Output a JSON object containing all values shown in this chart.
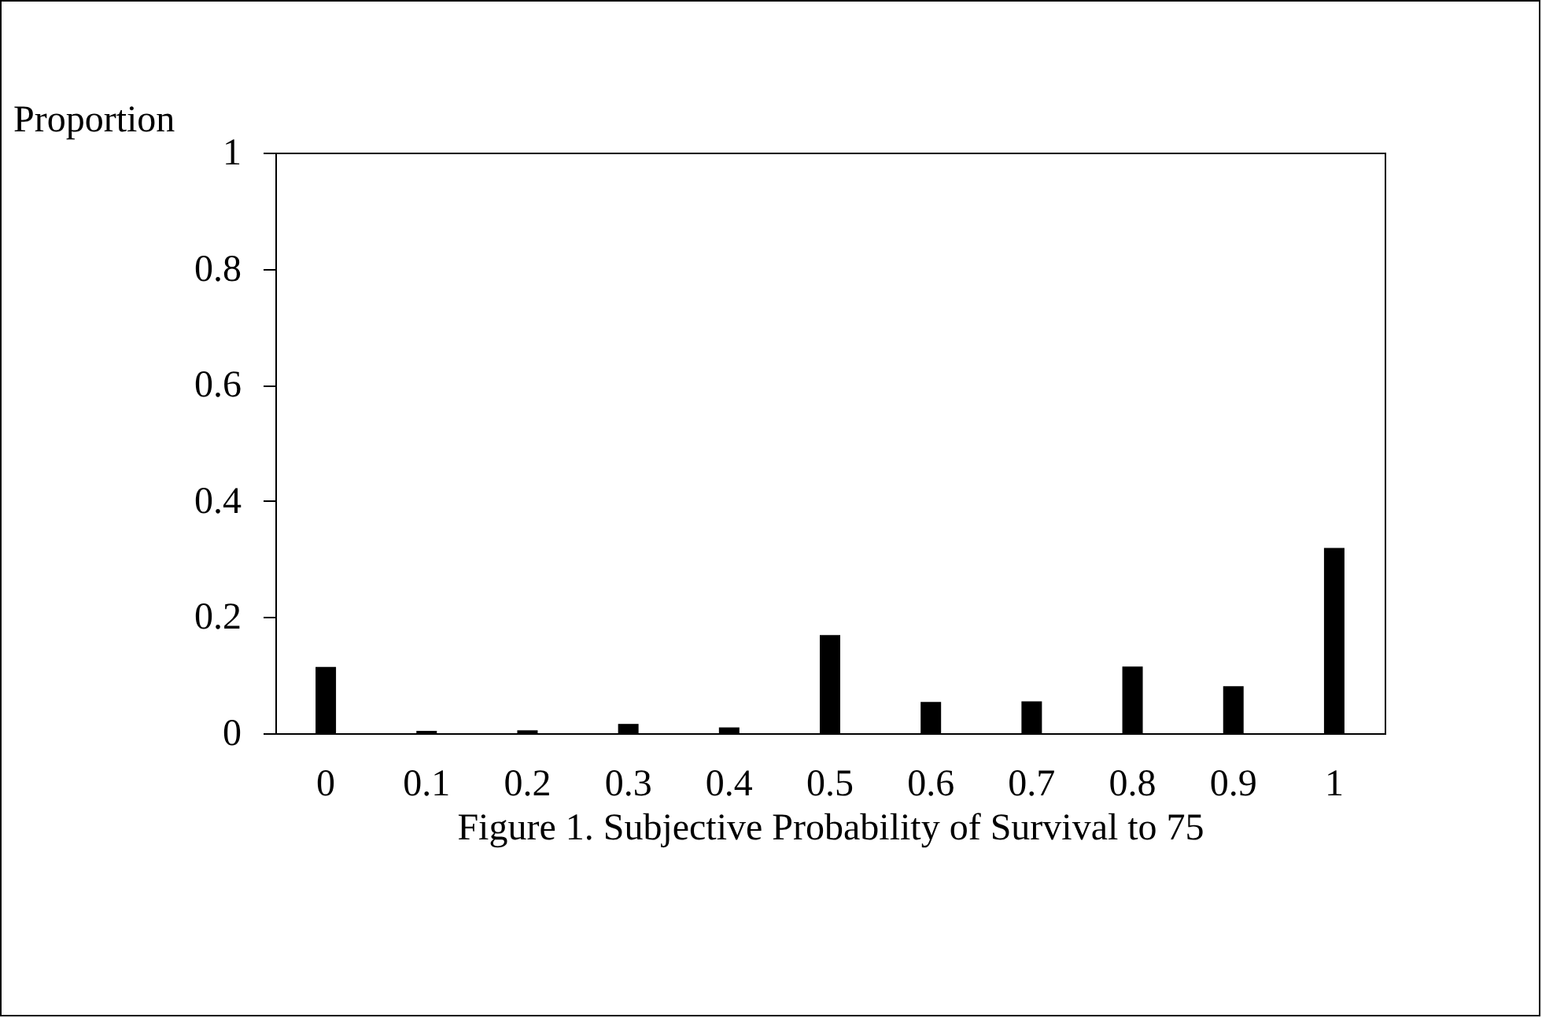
{
  "chart_data": {
    "type": "bar",
    "xlabel": "Figure 1. Subjective Probability of Survival to 75",
    "ylabel": "Proportion",
    "categories": [
      "0",
      "0.1",
      "0.2",
      "0.3",
      "0.4",
      "0.5",
      "0.6",
      "0.7",
      "0.8",
      "0.9",
      "1"
    ],
    "values": [
      0.114,
      0.004,
      0.005,
      0.016,
      0.01,
      0.169,
      0.054,
      0.055,
      0.115,
      0.081,
      0.319
    ],
    "color": "#000000",
    "ylim": [
      0,
      1
    ],
    "yticks": [
      0,
      0.2,
      0.4,
      0.6,
      0.8,
      1
    ],
    "grid": false
  }
}
